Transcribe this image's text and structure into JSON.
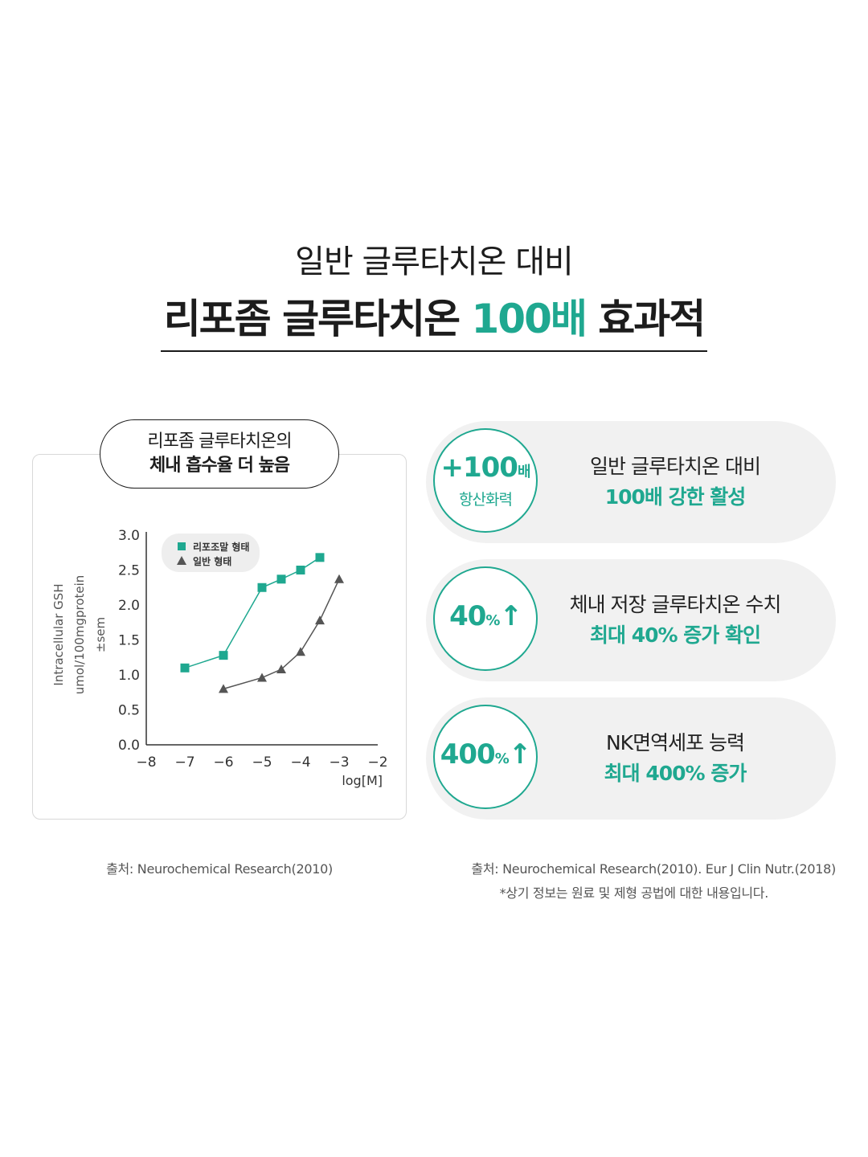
{
  "headline": {
    "line1": "일반 글루타치온 대비",
    "line2_pre": "리포좀 글루타치온 ",
    "line2_accent": "100배",
    "line2_post": " 효과적"
  },
  "chart_card": {
    "title_line1": "리포좀 글루타치온의",
    "title_line2": "체내 흡수율 더 높음"
  },
  "chart_data": {
    "type": "line",
    "xlabel": "log[M]",
    "ylabel_lines": [
      "Intracellular GSH",
      "umol/100mgprotein",
      "±sem"
    ],
    "xlim": [
      -8,
      -2
    ],
    "ylim": [
      0.0,
      3.0
    ],
    "x_ticks": [
      "−8",
      "−7",
      "−6",
      "−5",
      "−4",
      "−3",
      "−2"
    ],
    "y_ticks": [
      "0.0",
      "0.5",
      "1.0",
      "1.5",
      "2.0",
      "2.5",
      "3.0"
    ],
    "legend_position": "top-left",
    "series": [
      {
        "name": "리포조말 형태",
        "marker": "square",
        "color": "#1fa890",
        "x": [
          -7,
          -6,
          -5,
          -4.5,
          -4,
          -3.5
        ],
        "y": [
          1.1,
          1.28,
          2.25,
          2.37,
          2.5,
          2.68
        ]
      },
      {
        "name": "일반 형태",
        "marker": "triangle",
        "color": "#555555",
        "x": [
          -6,
          -5,
          -4.5,
          -4,
          -3.5,
          -3
        ],
        "y": [
          0.8,
          0.96,
          1.08,
          1.33,
          1.78,
          2.37
        ]
      }
    ]
  },
  "stats": [
    {
      "circle_big": "+100",
      "circle_small": "배",
      "circle_sub": "항산화력",
      "line1": "일반 글루타치온 대비",
      "line2": "100배 강한 활성"
    },
    {
      "circle_big": "40",
      "circle_small": "%",
      "circle_arrow": "↑",
      "line1": "체내 저장 글루타치온 수치",
      "line2": "최대 40% 증가 확인"
    },
    {
      "circle_big": "400",
      "circle_small": "%",
      "circle_arrow": "↑",
      "line1": "NK면역세포 능력",
      "line2": "최대 400% 증가"
    }
  ],
  "sources": {
    "left": "출처: Neurochemical Research(2010)",
    "right": "출처: Neurochemical Research(2010). Eur J Clin Nutr.(2018)",
    "note": "*상기 정보는 원료 및 제형 공법에 대한 내용입니다."
  },
  "colors": {
    "accent": "#1fa890",
    "pill_bg": "#f1f1f1",
    "dark": "#1a1a1a"
  }
}
